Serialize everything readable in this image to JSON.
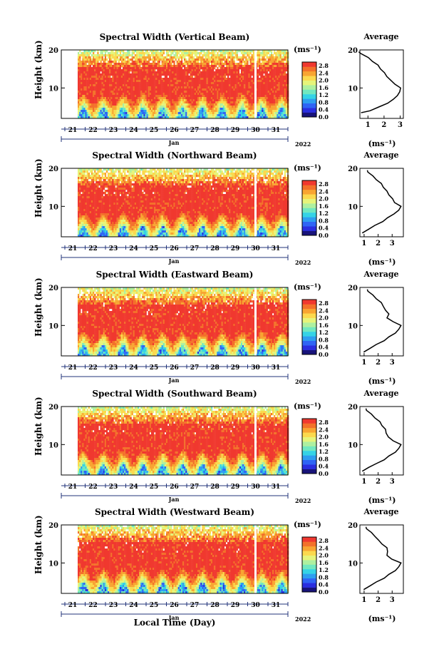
{
  "figure": {
    "xlabel": "Local Time (Day)",
    "month": "Jan",
    "year": "2022",
    "unit": "(ms⁻¹)",
    "avg_title": "Average",
    "avg_xlabel": "(ms⁻¹)",
    "ylabel": "Height (km)",
    "colors": [
      "#18137a",
      "#2a2ee0",
      "#2f64f5",
      "#2e9ef0",
      "#35d3e6",
      "#71e8c0",
      "#aef0a0",
      "#e6f47a",
      "#fbd94e",
      "#f8a532",
      "#f3712a",
      "#f0382f"
    ]
  },
  "chart_data": [
    {
      "type": "heatmap",
      "title": "Spectral Width (Vertical Beam)",
      "x_ticks": [
        "21",
        "22",
        "23",
        "24",
        "25",
        "26",
        "27",
        "28",
        "29",
        "30",
        "31"
      ],
      "y_ticks": [
        "10",
        "20"
      ],
      "ylim": [
        2,
        20
      ],
      "colorbar_ticks": [
        "0.0",
        "0.4",
        "0.8",
        "1.2",
        "1.6",
        "2.0",
        "2.4",
        "2.8"
      ],
      "colorbar_range": [
        0,
        3
      ],
      "average": {
        "x_ticks": [
          "1",
          "2",
          "3"
        ],
        "xlim": [
          0.5,
          3.2
        ],
        "height": [
          3.5,
          4,
          5,
          6,
          7,
          8,
          9,
          10,
          11,
          12,
          13,
          14,
          15,
          16,
          17,
          18,
          19,
          19.5
        ],
        "value": [
          0.6,
          1.1,
          1.7,
          2.2,
          2.6,
          2.8,
          3.0,
          3.0,
          2.7,
          2.4,
          2.2,
          2.0,
          1.8,
          1.6,
          1.3,
          1.0,
          0.6,
          0.4
        ]
      }
    },
    {
      "type": "heatmap",
      "title": "Spectral Width (Northward Beam)",
      "x_ticks": [
        "21",
        "22",
        "23",
        "24",
        "25",
        "26",
        "27",
        "28",
        "29",
        "30",
        "31"
      ],
      "y_ticks": [
        "10",
        "20"
      ],
      "ylim": [
        2,
        20
      ],
      "colorbar_ticks": [
        "0.0",
        "0.4",
        "0.8",
        "1.2",
        "1.6",
        "2.0",
        "2.4",
        "2.8"
      ],
      "colorbar_range": [
        0,
        3
      ],
      "average": {
        "x_ticks": [
          "1",
          "2",
          "3"
        ],
        "xlim": [
          0.7,
          3.8
        ],
        "height": [
          3,
          4,
          5,
          6,
          7,
          8,
          9,
          10,
          11,
          12,
          13,
          14,
          15,
          16,
          17,
          18,
          19,
          19.5
        ],
        "value": [
          0.9,
          1.3,
          1.8,
          2.3,
          2.7,
          3.1,
          3.5,
          3.6,
          3.2,
          3.0,
          2.8,
          2.6,
          2.4,
          2.2,
          1.9,
          1.6,
          1.3,
          1.2
        ]
      }
    },
    {
      "type": "heatmap",
      "title": "Spectral Width (Eastward Beam)",
      "x_ticks": [
        "21",
        "22",
        "23",
        "24",
        "25",
        "26",
        "27",
        "28",
        "29",
        "30",
        "31"
      ],
      "y_ticks": [
        "10",
        "20"
      ],
      "ylim": [
        2,
        20
      ],
      "colorbar_ticks": [
        "0.0",
        "0.4",
        "0.8",
        "1.2",
        "1.6",
        "2.0",
        "2.4",
        "2.8"
      ],
      "colorbar_range": [
        0,
        3
      ],
      "average": {
        "x_ticks": [
          "1",
          "2",
          "3"
        ],
        "xlim": [
          0.7,
          3.8
        ],
        "height": [
          3,
          4,
          5,
          6,
          7,
          8,
          9,
          10,
          11,
          12,
          13,
          14,
          15,
          16,
          17,
          18,
          19,
          19.5
        ],
        "value": [
          1.0,
          1.4,
          1.9,
          2.4,
          2.8,
          3.2,
          3.5,
          3.6,
          3.1,
          2.6,
          2.8,
          2.5,
          2.4,
          2.2,
          1.9,
          1.6,
          1.3,
          1.2
        ]
      }
    },
    {
      "type": "heatmap",
      "title": "Spectral Width (Southward Beam)",
      "x_ticks": [
        "21",
        "22",
        "23",
        "24",
        "25",
        "26",
        "27",
        "28",
        "29",
        "30",
        "31"
      ],
      "y_ticks": [
        "10",
        "20"
      ],
      "ylim": [
        2,
        20
      ],
      "colorbar_ticks": [
        "0.0",
        "0.4",
        "0.8",
        "1.2",
        "1.6",
        "2.0",
        "2.4",
        "2.8"
      ],
      "colorbar_range": [
        0,
        3
      ],
      "average": {
        "x_ticks": [
          "1",
          "2",
          "3"
        ],
        "xlim": [
          0.7,
          3.8
        ],
        "height": [
          3,
          4,
          5,
          6,
          7,
          8,
          9,
          10,
          11,
          12,
          13,
          14,
          15,
          16,
          17,
          18,
          19,
          19.5
        ],
        "value": [
          0.9,
          1.3,
          1.9,
          2.4,
          2.8,
          3.2,
          3.5,
          3.6,
          3.1,
          2.7,
          2.6,
          2.5,
          2.3,
          2.1,
          1.8,
          1.5,
          1.2,
          1.1
        ]
      }
    },
    {
      "type": "heatmap",
      "title": "Spectral Width (Westward Beam)",
      "x_ticks": [
        "21",
        "22",
        "23",
        "24",
        "25",
        "26",
        "27",
        "28",
        "29",
        "30",
        "31"
      ],
      "y_ticks": [
        "10",
        "20"
      ],
      "ylim": [
        2,
        20
      ],
      "colorbar_ticks": [
        "0.0",
        "0.4",
        "0.8",
        "1.2",
        "1.6",
        "2.0",
        "2.4",
        "2.8"
      ],
      "colorbar_range": [
        0,
        3
      ],
      "average": {
        "x_ticks": [
          "1",
          "2",
          "3"
        ],
        "xlim": [
          0.7,
          3.8
        ],
        "height": [
          3,
          4,
          5,
          6,
          7,
          8,
          9,
          10,
          11,
          12,
          13,
          14,
          15,
          16,
          17,
          18,
          19,
          19.5
        ],
        "value": [
          1.0,
          1.4,
          1.9,
          2.4,
          2.8,
          3.2,
          3.5,
          3.6,
          3.0,
          2.6,
          2.7,
          2.6,
          2.3,
          2.0,
          1.8,
          1.5,
          1.2,
          1.1
        ]
      }
    }
  ]
}
